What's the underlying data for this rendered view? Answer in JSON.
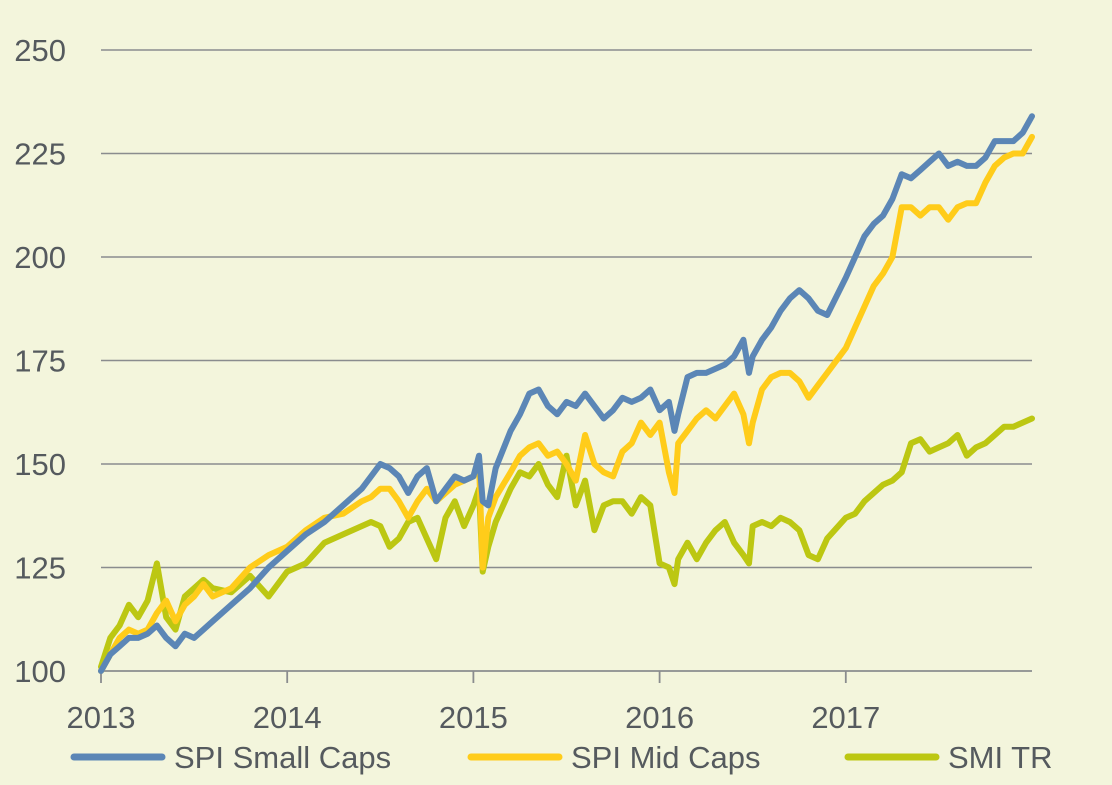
{
  "chart_data": {
    "type": "line",
    "title": "",
    "xlabel": "",
    "ylabel": "",
    "xlim": [
      2013,
      2018
    ],
    "ylim": [
      100,
      250
    ],
    "y_ticks": [
      100,
      125,
      150,
      175,
      200,
      225,
      250
    ],
    "x_ticks": [
      2013,
      2014,
      2015,
      2016,
      2017
    ],
    "y_tick_labels": [
      "100",
      "125",
      "150",
      "175",
      "200",
      "225",
      "250"
    ],
    "x_tick_labels": [
      "2013",
      "2014",
      "2015",
      "2016",
      "2017"
    ],
    "grid": "horizontal",
    "legend_position": "bottom",
    "series": [
      {
        "name": "SPI Small Caps",
        "color": "#5b86b6",
        "x": [
          2013.0,
          2013.05,
          2013.1,
          2013.15,
          2013.2,
          2013.25,
          2013.3,
          2013.35,
          2013.4,
          2013.45,
          2013.5,
          2013.55,
          2013.6,
          2013.7,
          2013.8,
          2013.9,
          2014.0,
          2014.1,
          2014.2,
          2014.3,
          2014.4,
          2014.45,
          2014.5,
          2014.55,
          2014.6,
          2014.65,
          2014.7,
          2014.75,
          2014.8,
          2014.85,
          2014.9,
          2014.95,
          2015.0,
          2015.03,
          2015.05,
          2015.08,
          2015.12,
          2015.2,
          2015.25,
          2015.3,
          2015.35,
          2015.4,
          2015.45,
          2015.5,
          2015.55,
          2015.6,
          2015.65,
          2015.7,
          2015.75,
          2015.8,
          2015.85,
          2015.9,
          2015.95,
          2016.0,
          2016.05,
          2016.08,
          2016.1,
          2016.15,
          2016.2,
          2016.25,
          2016.3,
          2016.35,
          2016.4,
          2016.45,
          2016.48,
          2016.5,
          2016.55,
          2016.6,
          2016.65,
          2016.7,
          2016.75,
          2016.8,
          2016.85,
          2016.9,
          2017.0,
          2017.05,
          2017.1,
          2017.15,
          2017.2,
          2017.25,
          2017.3,
          2017.35,
          2017.4,
          2017.45,
          2017.5,
          2017.55,
          2017.6,
          2017.65,
          2017.7,
          2017.75,
          2017.8,
          2017.85,
          2017.9,
          2017.95,
          2018.0
        ],
        "values": [
          100,
          104,
          106,
          108,
          108,
          109,
          111,
          108,
          106,
          109,
          108,
          110,
          112,
          116,
          120,
          125,
          129,
          133,
          136,
          140,
          144,
          147,
          150,
          149,
          147,
          143,
          147,
          149,
          141,
          144,
          147,
          146,
          147,
          152,
          141,
          140,
          149,
          158,
          162,
          167,
          168,
          164,
          162,
          165,
          164,
          167,
          164,
          161,
          163,
          166,
          165,
          166,
          168,
          163,
          165,
          158,
          162,
          171,
          172,
          172,
          173,
          174,
          176,
          180,
          172,
          176,
          180,
          183,
          187,
          190,
          192,
          190,
          187,
          186,
          195,
          200,
          205,
          208,
          210,
          214,
          220,
          219,
          221,
          223,
          225,
          222,
          223,
          222,
          222,
          224,
          228,
          228,
          228,
          230,
          234
        ]
      },
      {
        "name": "SPI Mid Caps",
        "color": "#ffcc1a",
        "x": [
          2013.0,
          2013.05,
          2013.1,
          2013.15,
          2013.2,
          2013.25,
          2013.3,
          2013.35,
          2013.4,
          2013.45,
          2013.5,
          2013.55,
          2013.6,
          2013.7,
          2013.8,
          2013.9,
          2014.0,
          2014.1,
          2014.2,
          2014.3,
          2014.4,
          2014.45,
          2014.5,
          2014.55,
          2014.6,
          2014.65,
          2014.7,
          2014.75,
          2014.8,
          2014.85,
          2014.9,
          2014.95,
          2015.0,
          2015.03,
          2015.05,
          2015.08,
          2015.12,
          2015.2,
          2015.25,
          2015.3,
          2015.35,
          2015.4,
          2015.45,
          2015.5,
          2015.55,
          2015.6,
          2015.65,
          2015.7,
          2015.75,
          2015.8,
          2015.85,
          2015.9,
          2015.95,
          2016.0,
          2016.05,
          2016.08,
          2016.1,
          2016.15,
          2016.2,
          2016.25,
          2016.3,
          2016.35,
          2016.4,
          2016.45,
          2016.48,
          2016.5,
          2016.55,
          2016.6,
          2016.65,
          2016.7,
          2016.75,
          2016.8,
          2016.85,
          2016.9,
          2017.0,
          2017.05,
          2017.1,
          2017.15,
          2017.2,
          2017.25,
          2017.3,
          2017.35,
          2017.4,
          2017.45,
          2017.5,
          2017.55,
          2017.6,
          2017.65,
          2017.7,
          2017.75,
          2017.8,
          2017.85,
          2017.9,
          2017.95,
          2018.0
        ],
        "values": [
          100,
          104,
          108,
          110,
          109,
          110,
          114,
          117,
          112,
          116,
          118,
          121,
          118,
          120,
          125,
          128,
          130,
          134,
          137,
          138,
          141,
          142,
          144,
          144,
          141,
          137,
          141,
          144,
          141,
          143,
          145,
          146,
          147,
          150,
          125,
          137,
          142,
          148,
          152,
          154,
          155,
          152,
          153,
          150,
          146,
          157,
          150,
          148,
          147,
          153,
          155,
          160,
          157,
          160,
          148,
          143,
          155,
          158,
          161,
          163,
          161,
          164,
          167,
          162,
          155,
          160,
          168,
          171,
          172,
          172,
          170,
          166,
          169,
          172,
          178,
          183,
          188,
          193,
          196,
          200,
          212,
          212,
          210,
          212,
          212,
          209,
          212,
          213,
          213,
          218,
          222,
          224,
          225,
          225,
          229
        ]
      },
      {
        "name": "SMI TR",
        "color": "#bcc712",
        "x": [
          2013.0,
          2013.05,
          2013.1,
          2013.15,
          2013.2,
          2013.25,
          2013.3,
          2013.35,
          2013.4,
          2013.45,
          2013.5,
          2013.55,
          2013.6,
          2013.7,
          2013.8,
          2013.9,
          2014.0,
          2014.1,
          2014.2,
          2014.3,
          2014.4,
          2014.45,
          2014.5,
          2014.55,
          2014.6,
          2014.65,
          2014.7,
          2014.75,
          2014.8,
          2014.85,
          2014.9,
          2014.95,
          2015.0,
          2015.03,
          2015.05,
          2015.08,
          2015.12,
          2015.2,
          2015.25,
          2015.3,
          2015.35,
          2015.4,
          2015.45,
          2015.5,
          2015.55,
          2015.6,
          2015.65,
          2015.7,
          2015.75,
          2015.8,
          2015.85,
          2015.9,
          2015.95,
          2016.0,
          2016.05,
          2016.08,
          2016.1,
          2016.15,
          2016.2,
          2016.25,
          2016.3,
          2016.35,
          2016.4,
          2016.45,
          2016.48,
          2016.5,
          2016.55,
          2016.6,
          2016.65,
          2016.7,
          2016.75,
          2016.8,
          2016.85,
          2016.9,
          2017.0,
          2017.05,
          2017.1,
          2017.15,
          2017.2,
          2017.25,
          2017.3,
          2017.35,
          2017.4,
          2017.45,
          2017.5,
          2017.55,
          2017.6,
          2017.65,
          2017.7,
          2017.75,
          2017.8,
          2017.85,
          2017.9,
          2017.95,
          2018.0
        ],
        "values": [
          101,
          108,
          111,
          116,
          113,
          117,
          126,
          113,
          110,
          118,
          120,
          122,
          120,
          119,
          123,
          118,
          124,
          126,
          131,
          133,
          135,
          136,
          135,
          130,
          132,
          136,
          137,
          132,
          127,
          137,
          141,
          135,
          140,
          144,
          124,
          130,
          136,
          144,
          148,
          147,
          150,
          145,
          142,
          152,
          140,
          146,
          134,
          140,
          141,
          141,
          138,
          142,
          140,
          126,
          125,
          121,
          127,
          131,
          127,
          131,
          134,
          136,
          131,
          128,
          126,
          135,
          136,
          135,
          137,
          136,
          134,
          128,
          127,
          132,
          137,
          138,
          141,
          143,
          145,
          146,
          148,
          155,
          156,
          153,
          154,
          155,
          157,
          152,
          154,
          155,
          157,
          159,
          159,
          160,
          161
        ]
      }
    ]
  }
}
